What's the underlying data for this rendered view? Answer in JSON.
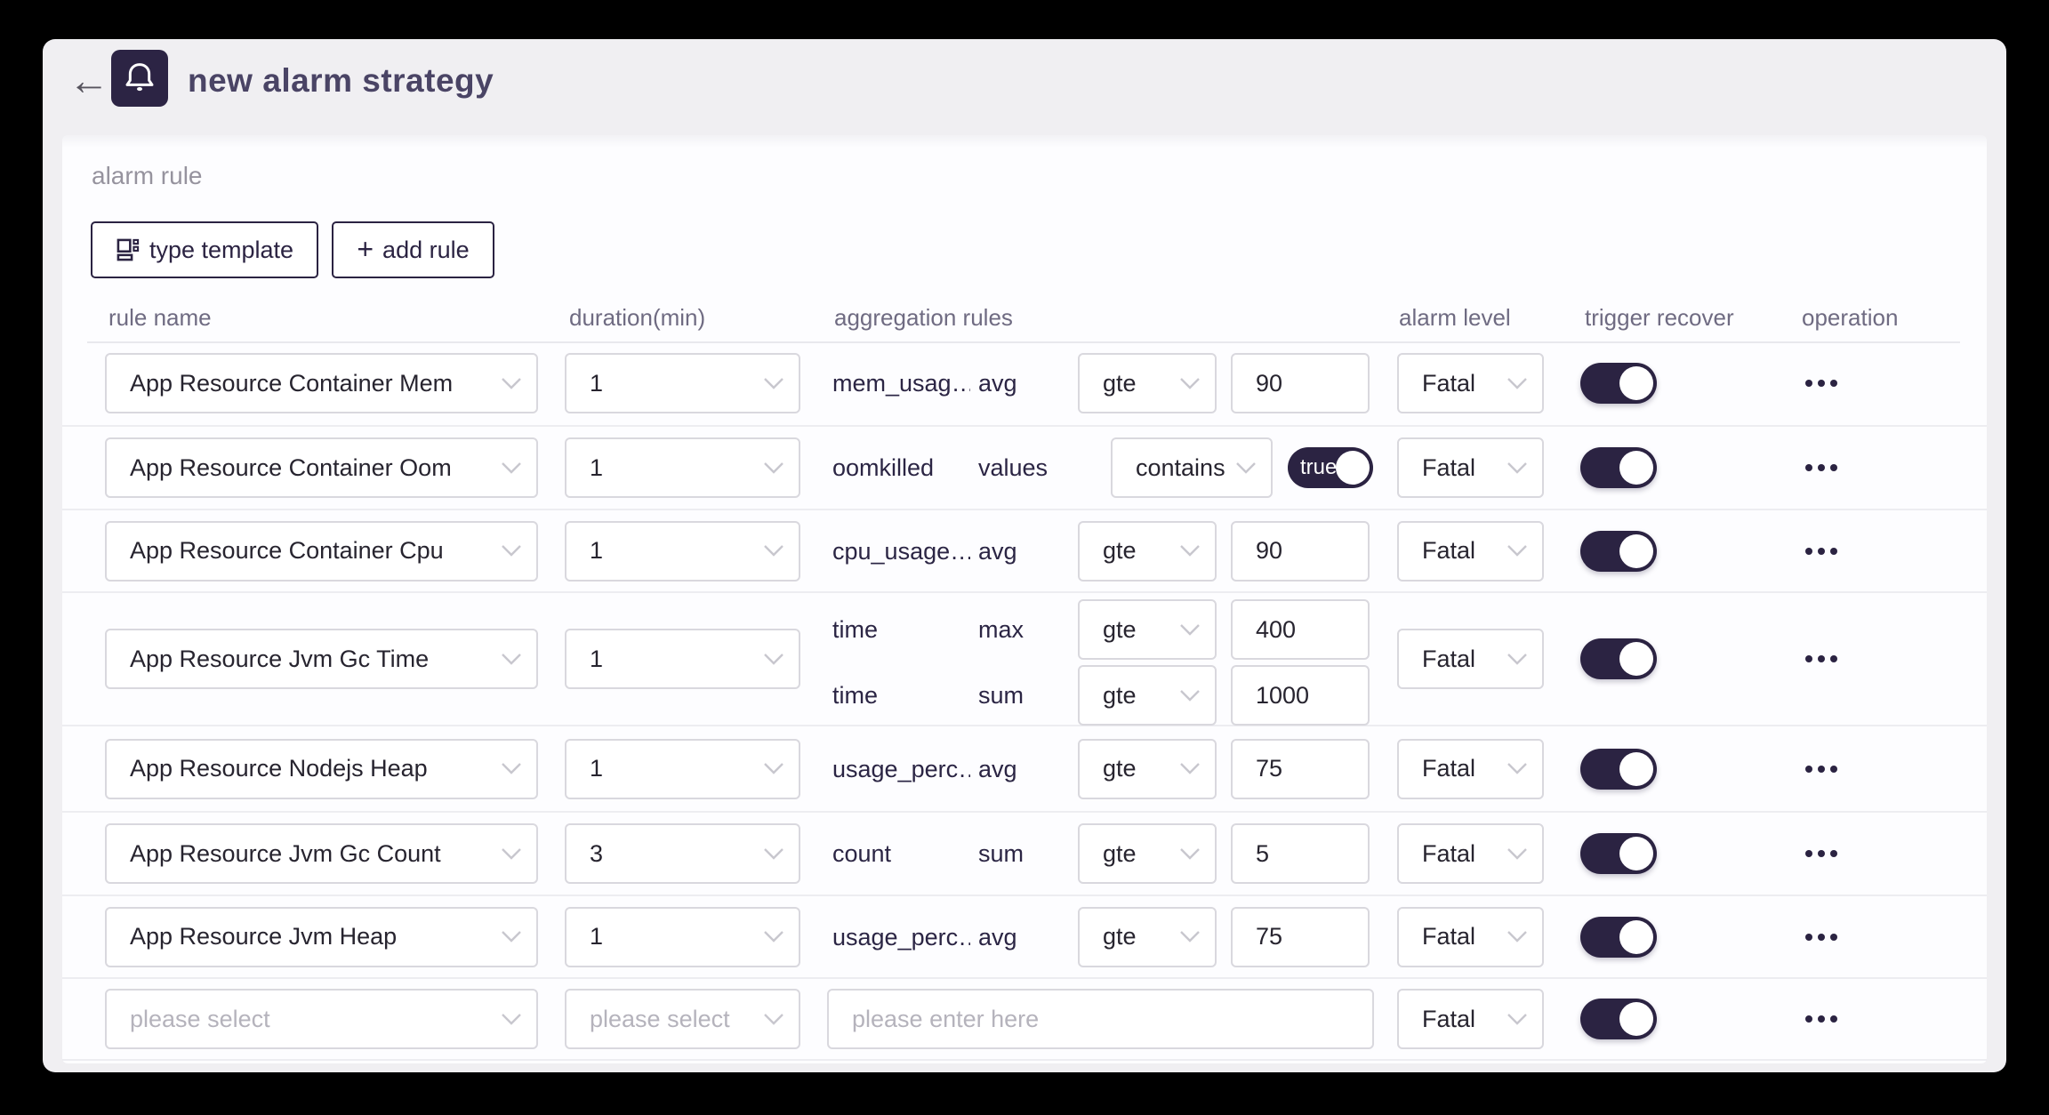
{
  "colors": {
    "page_bg": "#000000",
    "card_bg": "#f0eff2",
    "panel_bg": "#fdfdff",
    "accent_navy": "#2b2342",
    "title_text": "#4a4465",
    "column_header_text": "#6f6b82",
    "control_border": "#d9d8de",
    "placeholder_text": "#b5b3bc"
  },
  "header": {
    "back_icon": "←",
    "bell_icon": "bell-icon",
    "title": "new alarm strategy"
  },
  "section_label": "alarm rule",
  "toolbar": {
    "template_icon": "template-icon",
    "type_template_label": "type template",
    "plus_icon": "+",
    "add_rule_label": "add rule"
  },
  "table": {
    "columns": [
      "rule name",
      "duration(min)",
      "aggregation rules",
      "alarm level",
      "trigger recover",
      "operation"
    ],
    "rows": [
      {
        "rule": "App Resource Container Mem",
        "duration": "1",
        "level": "Fatal",
        "trigger_on": true,
        "aggs": [
          {
            "metric": "mem_usag…",
            "func": "avg",
            "op": "gte",
            "value": "90",
            "value_kind": "input"
          }
        ]
      },
      {
        "rule": "App Resource Container Oom",
        "duration": "1",
        "level": "Fatal",
        "trigger_on": true,
        "aggs": [
          {
            "metric": "oomkilled",
            "func": "values",
            "op": "contains",
            "value": "true",
            "value_kind": "toggle"
          }
        ]
      },
      {
        "rule": "App Resource Container Cpu",
        "duration": "1",
        "level": "Fatal",
        "trigger_on": true,
        "aggs": [
          {
            "metric": "cpu_usage…",
            "func": "avg",
            "op": "gte",
            "value": "90",
            "value_kind": "input"
          }
        ]
      },
      {
        "rule": "App Resource Jvm Gc Time",
        "duration": "1",
        "level": "Fatal",
        "trigger_on": true,
        "aggs": [
          {
            "metric": "time",
            "func": "max",
            "op": "gte",
            "value": "400",
            "value_kind": "input"
          },
          {
            "metric": "time",
            "func": "sum",
            "op": "gte",
            "value": "1000",
            "value_kind": "input"
          }
        ]
      },
      {
        "rule": "App Resource Nodejs Heap",
        "duration": "1",
        "level": "Fatal",
        "trigger_on": true,
        "aggs": [
          {
            "metric": "usage_perc…",
            "func": "avg",
            "op": "gte",
            "value": "75",
            "value_kind": "input"
          }
        ]
      },
      {
        "rule": "App Resource Jvm Gc Count",
        "duration": "3",
        "level": "Fatal",
        "trigger_on": true,
        "aggs": [
          {
            "metric": "count",
            "func": "sum",
            "op": "gte",
            "value": "5",
            "value_kind": "input"
          }
        ]
      },
      {
        "rule": "App Resource Jvm Heap",
        "duration": "1",
        "level": "Fatal",
        "trigger_on": true,
        "aggs": [
          {
            "metric": "usage_perc…",
            "func": "avg",
            "op": "gte",
            "value": "75",
            "value_kind": "input"
          }
        ]
      },
      {
        "rule": "",
        "rule_placeholder": "please select",
        "duration": "",
        "duration_placeholder": "please select",
        "aggs": [],
        "value_placeholder": "please enter here",
        "level": "Fatal",
        "trigger_on": true,
        "is_new_row": true
      }
    ]
  }
}
